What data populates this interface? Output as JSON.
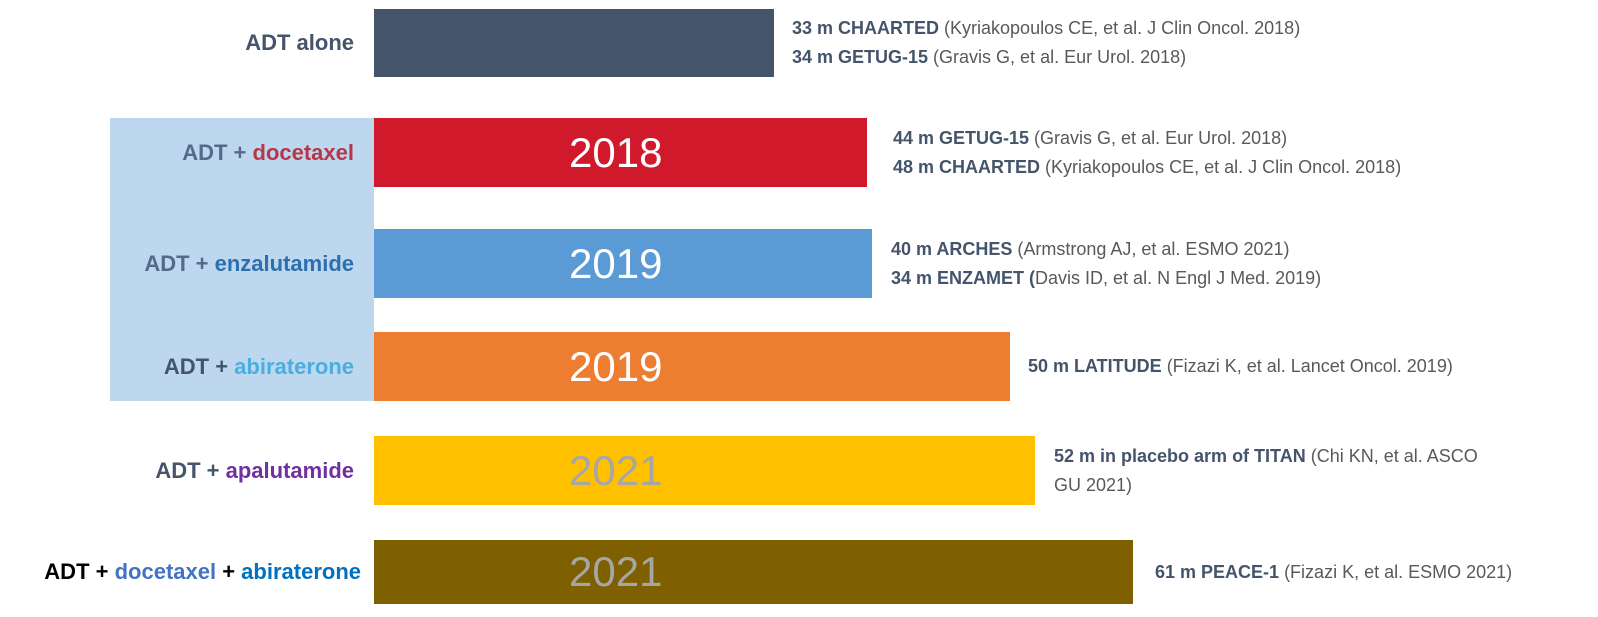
{
  "rows": [
    {
      "label": [
        {
          "text": "ADT alone",
          "color": "#44546a"
        }
      ],
      "bar_color": "#44546a",
      "notes": [
        {
          "bold": "33 m CHAARTED",
          "text": " (Kyriakopoulos CE, et al. J Clin Oncol. 2018)"
        },
        {
          "bold": "34 m GETUG-15",
          "text": " (Gravis G, et al. Eur Urol. 2018)"
        }
      ]
    },
    {
      "label": [
        {
          "text": "ADT + ",
          "color": "#56698a"
        },
        {
          "text": "docetaxel",
          "color": "#b5374a"
        }
      ],
      "bar_color": "#d0192b",
      "year": "2018",
      "year_color": "#ffffff",
      "notes": [
        {
          "bold": "44 m GETUG-15",
          "text": " (Gravis G, et al. Eur Urol. 2018)"
        },
        {
          "bold": "48 m CHAARTED",
          "text": " (Kyriakopoulos CE, et al. J Clin Oncol. 2018)"
        }
      ]
    },
    {
      "label": [
        {
          "text": "ADT + ",
          "color": "#56698a"
        },
        {
          "text": "enzalutamide",
          "color": "#2e6fae"
        }
      ],
      "bar_color": "#5b9bd5",
      "year": "2019",
      "year_color": "#ffffff",
      "notes": [
        {
          "bold": "40 m ARCHES",
          "text": " (Armstrong AJ, et al. ESMO 2021)"
        },
        {
          "bold": "34 m ENZAMET (",
          "text": "Davis ID, et al. N Engl J Med. 2019)"
        }
      ]
    },
    {
      "label": [
        {
          "text": "ADT + ",
          "color": "#44546a"
        },
        {
          "text": "abiraterone",
          "color": "#4aaee0"
        }
      ],
      "bar_color": "#ed7d31",
      "year": "2019",
      "year_color": "#ffffff",
      "notes": [
        {
          "bold": "50 m LATITUDE",
          "text": " (Fizazi K, et al. Lancet Oncol. 2019)"
        }
      ]
    },
    {
      "label": [
        {
          "text": "ADT + ",
          "color": "#44546a"
        },
        {
          "text": "apalutamide",
          "color": "#7030a0"
        }
      ],
      "bar_color": "#ffc000",
      "year": "2021",
      "year_color": "#a6a6a6",
      "notes": [
        {
          "bold": "52 m in placebo arm of TITAN",
          "text": " (Chi KN, et al. ASCO GU 2021)"
        }
      ]
    },
    {
      "label": [
        {
          "text": "ADT + ",
          "color": "#000000"
        },
        {
          "text": "docetaxel",
          "color": "#4472c4"
        },
        {
          "text": " + ",
          "color": "#000000"
        },
        {
          "text": "abiraterone",
          "color": "#0070c0"
        }
      ],
      "bar_color": "#7f6000",
      "year": "2021",
      "year_color": "#a6a6a6",
      "notes": [
        {
          "bold": "61 m PEACE-1",
          "text": " (Fizazi K, et al. ESMO 2021)"
        }
      ]
    }
  ]
}
